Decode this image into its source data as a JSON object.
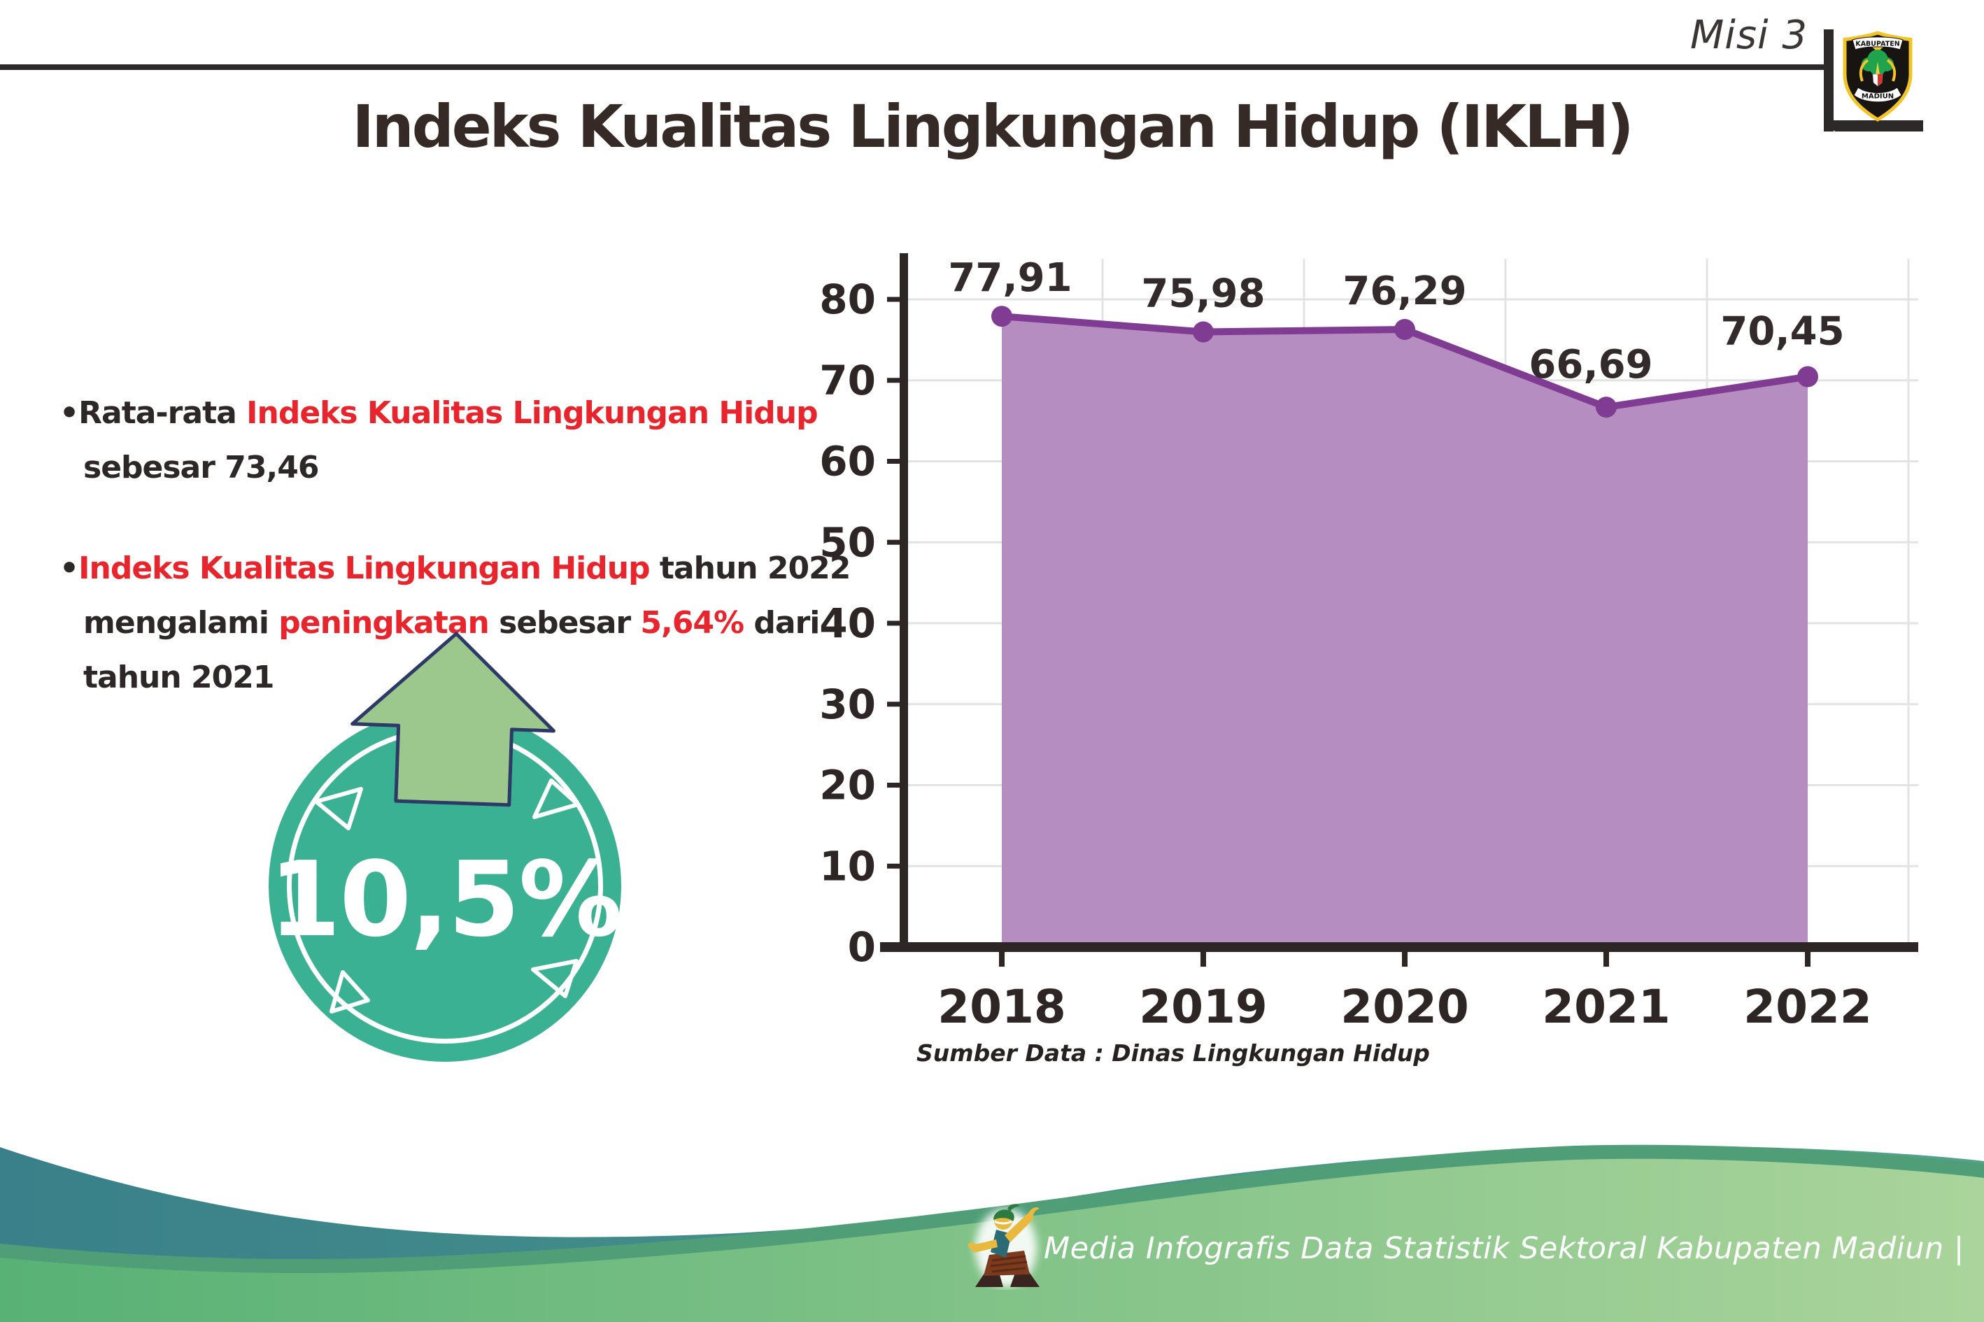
{
  "page": {
    "misi_label": "Misi 3",
    "title": "Indeks Kualitas Lingkungan Hidup (IKLH)",
    "source_note": "Sumber Data : Dinas Lingkungan Hidup",
    "footer_text": "Media Infografis Data Statistik Sektoral Kabupaten Madiun |"
  },
  "logo": {
    "name": "kabupaten-madiun-crest",
    "top_text": "KABUPATEN",
    "bottom_text": "MADIUN"
  },
  "icons": {
    "mascot": "dancer-mascot",
    "badge_arrow": "arrow-up",
    "logo": "kabupaten-madiun-crest"
  },
  "badge": {
    "value": "10,5%",
    "circle_color": "#3bb193",
    "arrow_fill": "#9cc88d",
    "arrow_outline": "#2d3966"
  },
  "bullets": [
    {
      "lines": [
        [
          {
            "t": "•",
            "c": "dark"
          },
          {
            "t": "Rata-rata ",
            "c": "dark"
          },
          {
            "t": "Indeks Kualitas Lingkungan Hidup",
            "c": "red"
          }
        ],
        [
          {
            "t": "sebesar 73,46",
            "c": "dark"
          }
        ]
      ]
    },
    {
      "lines": [
        [
          {
            "t": "•",
            "c": "dark"
          },
          {
            "t": "Indeks Kualitas Lingkungan Hidup",
            "c": "red"
          },
          {
            "t": " tahun 2022",
            "c": "dark"
          }
        ],
        [
          {
            "t": "mengalami ",
            "c": "dark"
          },
          {
            "t": "peningkatan",
            "c": "red"
          },
          {
            "t": " sebesar ",
            "c": "dark"
          },
          {
            "t": "5,64%",
            "c": "red"
          },
          {
            "t": " dari",
            "c": "dark"
          }
        ],
        [
          {
            "t": "tahun 2021",
            "c": "dark"
          }
        ]
      ]
    }
  ],
  "chart_data": {
    "type": "area",
    "title": "Indeks Kualitas Lingkungan Hidup (IKLH) 2018-2022",
    "categories": [
      "2018",
      "2019",
      "2020",
      "2021",
      "2022"
    ],
    "values": [
      77.91,
      75.98,
      76.29,
      66.69,
      70.45
    ],
    "value_labels": [
      "77,91",
      "75,98",
      "76,29",
      "66,69",
      "70,45"
    ],
    "xlabel": "",
    "ylabel": "",
    "ylim": [
      0,
      80
    ],
    "ytick_step": 10,
    "grid": true,
    "legend": false,
    "colors": {
      "area_fill": "#b68dc1",
      "line": "#7f3c92",
      "dot": "#7f3c92",
      "axis": "#2d2625",
      "gridline": "#e4e2e2",
      "tick_label": "#2d2625",
      "data_label": "#332b2b"
    }
  },
  "theme_colors": {
    "accent_red": "#e8242c",
    "badge_teal": "#3bb193",
    "arrow_green": "#9cc88d",
    "wave_teal_start": "#39808a",
    "wave_teal_end": "#55a28b",
    "wave_green_start": "#58b175",
    "wave_green_end": "#aad49b",
    "wave_rim": "#4f9e78",
    "header_rule": "#2e2929"
  }
}
